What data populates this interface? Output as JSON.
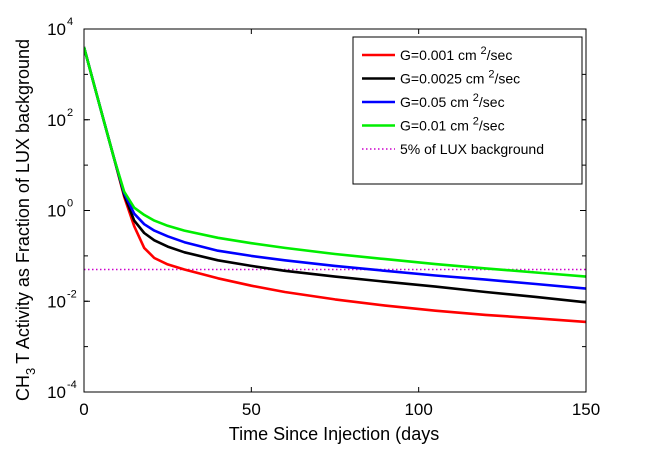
{
  "chart_data": {
    "type": "line",
    "title": "",
    "xlabel": "Time Since Injection (days",
    "ylabel_main": "CH",
    "ylabel_sub": "3",
    "ylabel_rest": "T Activity as Fraction of LUX background",
    "xlim": [
      0,
      150
    ],
    "ylim": [
      0.0001,
      10000
    ],
    "yscale": "log",
    "grid": false,
    "legend_position": "top-right",
    "x_ticks": [
      {
        "value": 0,
        "label": "0"
      },
      {
        "value": 50,
        "label": "50"
      },
      {
        "value": 100,
        "label": "100"
      },
      {
        "value": 150,
        "label": "150"
      }
    ],
    "y_ticks": [
      {
        "value": 0.0001,
        "base": "10",
        "exp": "-4"
      },
      {
        "value": 0.01,
        "base": "10",
        "exp": "-2"
      },
      {
        "value": 1,
        "base": "10",
        "exp": "0"
      },
      {
        "value": 100,
        "base": "10",
        "exp": "2"
      },
      {
        "value": 10000,
        "base": "10",
        "exp": "4"
      }
    ],
    "x": [
      0,
      3,
      6,
      9,
      12,
      15,
      18,
      21,
      25,
      30,
      40,
      50,
      60,
      75,
      90,
      105,
      120,
      135,
      150
    ],
    "series": [
      {
        "name_prefix": "G=0.001 cm",
        "name_exp": "2",
        "name_suffix": "/sec",
        "color": "#ff0000",
        "values": [
          4000,
          600,
          90,
          14,
          2.0,
          0.45,
          0.15,
          0.09,
          0.065,
          0.05,
          0.032,
          0.022,
          0.016,
          0.011,
          0.008,
          0.0062,
          0.005,
          0.0042,
          0.0035
        ]
      },
      {
        "name_prefix": "G=0.0025 cm",
        "name_exp": "2",
        "name_suffix": "/sec",
        "color": "#000000",
        "values": [
          4000,
          600,
          90,
          14,
          2.2,
          0.6,
          0.32,
          0.22,
          0.16,
          0.12,
          0.08,
          0.06,
          0.047,
          0.035,
          0.027,
          0.021,
          0.016,
          0.0125,
          0.0095
        ]
      },
      {
        "name_prefix": "G=0.05 cm",
        "name_exp": "2",
        "name_suffix": "/sec",
        "color": "#0000ff",
        "values": [
          4000,
          600,
          90,
          14,
          2.4,
          0.85,
          0.5,
          0.36,
          0.27,
          0.2,
          0.13,
          0.1,
          0.08,
          0.06,
          0.047,
          0.037,
          0.03,
          0.024,
          0.019
        ]
      },
      {
        "name_prefix": "G=0.01 cm",
        "name_exp": "2",
        "name_suffix": "/sec",
        "color": "#00ee00",
        "values": [
          4000,
          600,
          90,
          14,
          2.6,
          1.15,
          0.8,
          0.6,
          0.46,
          0.36,
          0.25,
          0.19,
          0.15,
          0.11,
          0.085,
          0.066,
          0.053,
          0.043,
          0.035
        ]
      }
    ],
    "reference_line": {
      "name": "5% of LUX background",
      "value": 0.05,
      "color": "#cc00cc"
    }
  }
}
